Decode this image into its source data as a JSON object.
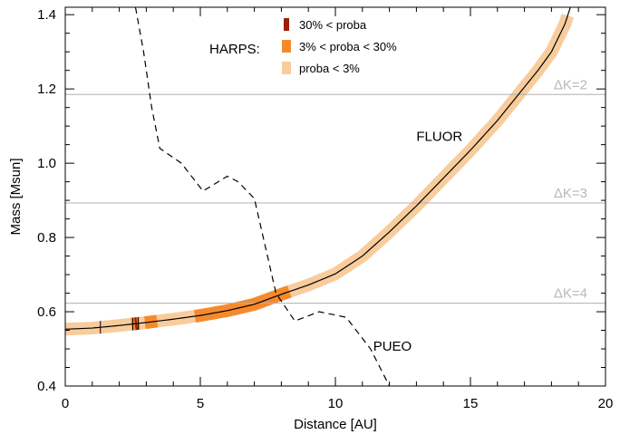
{
  "chart_data": {
    "type": "line",
    "title": "",
    "xlabel": "Distance [AU]",
    "ylabel": "Mass [Msun]",
    "xlim": [
      0,
      20
    ],
    "ylim": [
      0.4,
      1.42
    ],
    "x_ticks": [
      "0",
      "5",
      "10",
      "15",
      "20"
    ],
    "y_ticks": [
      "0.4",
      "0.6",
      "0.8",
      "1.0",
      "1.2",
      "1.4"
    ],
    "x_tick_values": [
      0,
      5,
      10,
      15,
      20
    ],
    "y_tick_values": [
      0.4,
      0.6,
      0.8,
      1.0,
      1.2,
      1.4
    ],
    "grid": false,
    "series": [
      {
        "name": "FLUOR",
        "style": "solid",
        "color": "#000000",
        "x": [
          0,
          1,
          2,
          3,
          4,
          5,
          6,
          7,
          8,
          9,
          10,
          11,
          12,
          13,
          14,
          15,
          16,
          17,
          17.5,
          18,
          18.5,
          18.7
        ],
        "y": [
          0.553,
          0.556,
          0.563,
          0.571,
          0.58,
          0.59,
          0.603,
          0.62,
          0.647,
          0.672,
          0.702,
          0.75,
          0.815,
          0.885,
          0.96,
          1.035,
          1.115,
          1.205,
          1.25,
          1.3,
          1.375,
          1.42
        ]
      },
      {
        "name": "PUEO",
        "style": "dashed",
        "color": "#000000",
        "x": [
          2.6,
          2.9,
          3.2,
          3.5,
          4.3,
          5.1,
          6.0,
          6.4,
          7.0,
          7.8,
          8.5,
          9.4,
          10.4,
          11.3,
          12.0
        ],
        "y": [
          1.42,
          1.3,
          1.15,
          1.04,
          1.0,
          0.925,
          0.965,
          0.95,
          0.905,
          0.65,
          0.575,
          0.6,
          0.585,
          0.5,
          0.4
        ]
      }
    ],
    "reference_lines": [
      {
        "y": 1.185,
        "label": "ΔK=2"
      },
      {
        "y": 0.893,
        "label": "ΔK=3"
      },
      {
        "y": 0.623,
        "label": "ΔK=4"
      }
    ],
    "probability_band": {
      "low": {
        "color": "#f8cc9c",
        "x_range": [
          0,
          18.6
        ]
      },
      "mid": {
        "color": "#f58a2c",
        "ranges": [
          [
            2.45,
            2.75
          ],
          [
            2.95,
            3.4
          ],
          [
            4.8,
            8.3
          ]
        ]
      },
      "high": {
        "color": "#9a1f0c",
        "ranges": [
          [
            2.58,
            2.66
          ]
        ]
      }
    },
    "markers_x": [
      1.3,
      2.5,
      2.7
    ],
    "legend": {
      "placement": "top-center",
      "title": "HARPS:",
      "entries": [
        {
          "label": "30% < proba",
          "color": "#9a1f0c"
        },
        {
          "label": "3% < proba < 30%",
          "color": "#f58a2c"
        },
        {
          "label": "proba < 3%",
          "color": "#f8cc9c"
        }
      ]
    },
    "annotations": [
      {
        "text": "FLUOR",
        "x": 13.0,
        "y": 1.06
      },
      {
        "text": "PUEO",
        "x": 11.4,
        "y": 0.495
      }
    ]
  }
}
